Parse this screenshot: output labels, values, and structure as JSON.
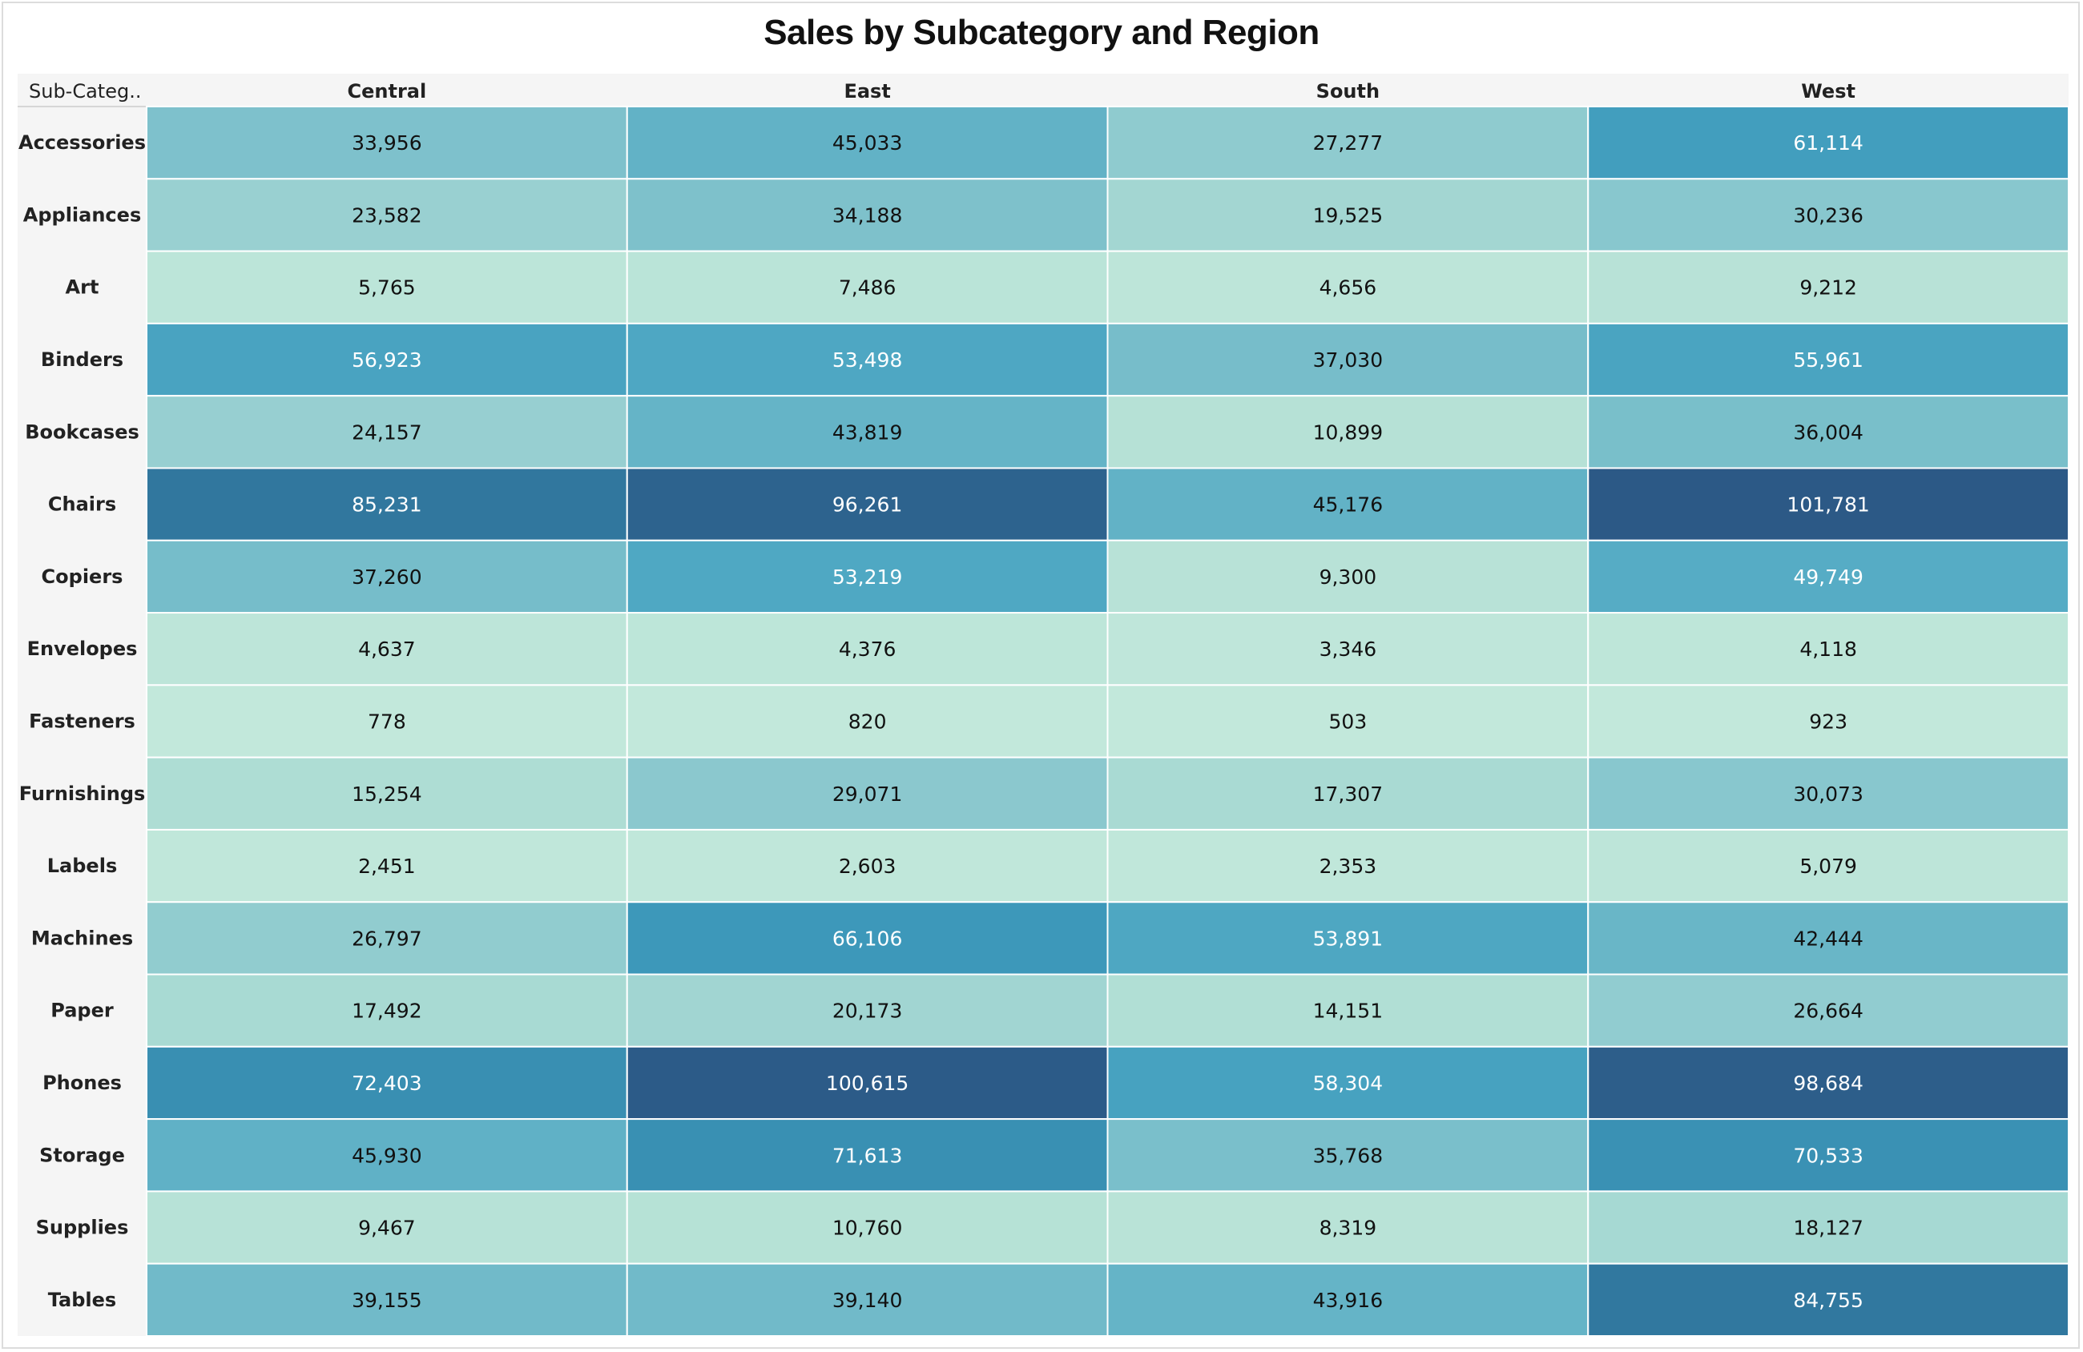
{
  "chart_data": {
    "type": "heatmap",
    "title": "Sales by Subcategory and Region",
    "row_header_label": "Sub-Categ..",
    "columns": [
      "Central",
      "East",
      "South",
      "West"
    ],
    "rows": [
      "Accessories",
      "Appliances",
      "Art",
      "Binders",
      "Bookcases",
      "Chairs",
      "Copiers",
      "Envelopes",
      "Fasteners",
      "Furnishings",
      "Labels",
      "Machines",
      "Paper",
      "Phones",
      "Storage",
      "Supplies",
      "Tables"
    ],
    "values": [
      [
        33956,
        45033,
        27277,
        61114
      ],
      [
        23582,
        34188,
        19525,
        30236
      ],
      [
        5765,
        7486,
        4656,
        9212
      ],
      [
        56923,
        53498,
        37030,
        55961
      ],
      [
        24157,
        43819,
        10899,
        36004
      ],
      [
        85231,
        96261,
        45176,
        101781
      ],
      [
        37260,
        53219,
        9300,
        49749
      ],
      [
        4637,
        4376,
        3346,
        4118
      ],
      [
        778,
        820,
        503,
        923
      ],
      [
        15254,
        29071,
        17307,
        30073
      ],
      [
        2451,
        2603,
        2353,
        5079
      ],
      [
        26797,
        66106,
        53891,
        42444
      ],
      [
        17492,
        20173,
        14151,
        26664
      ],
      [
        72403,
        100615,
        58304,
        98684
      ],
      [
        45930,
        71613,
        35768,
        70533
      ],
      [
        9467,
        10760,
        8319,
        18127
      ],
      [
        39155,
        39140,
        43916,
        84755
      ]
    ],
    "color_scale": {
      "stops": [
        "#c2e8db",
        "#b3e0d5",
        "#93cdd0",
        "#73bbc9",
        "#52aac4",
        "#3e9bbd",
        "#3689ad",
        "#2f6f98",
        "#2c5986"
      ],
      "domain": [
        503,
        101781
      ],
      "light_text_color": "#ffffff",
      "dark_text_color": "#111111"
    },
    "colors": {
      "header_background": "#f5f5f5",
      "cell_border": "#ffffff"
    }
  }
}
